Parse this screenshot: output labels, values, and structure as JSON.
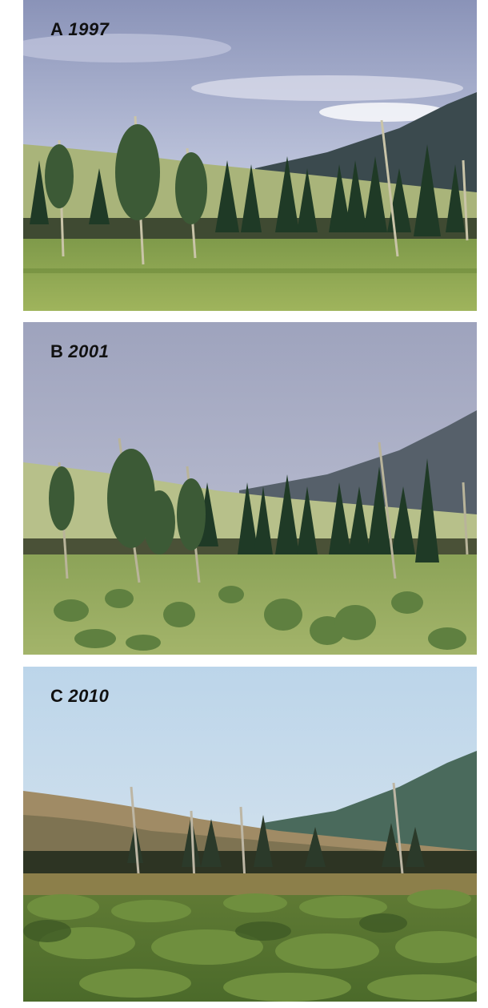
{
  "panels": [
    {
      "letter": "A",
      "year": "1997"
    },
    {
      "letter": "B",
      "year": "2001"
    },
    {
      "letter": "C",
      "year": "2010"
    }
  ]
}
